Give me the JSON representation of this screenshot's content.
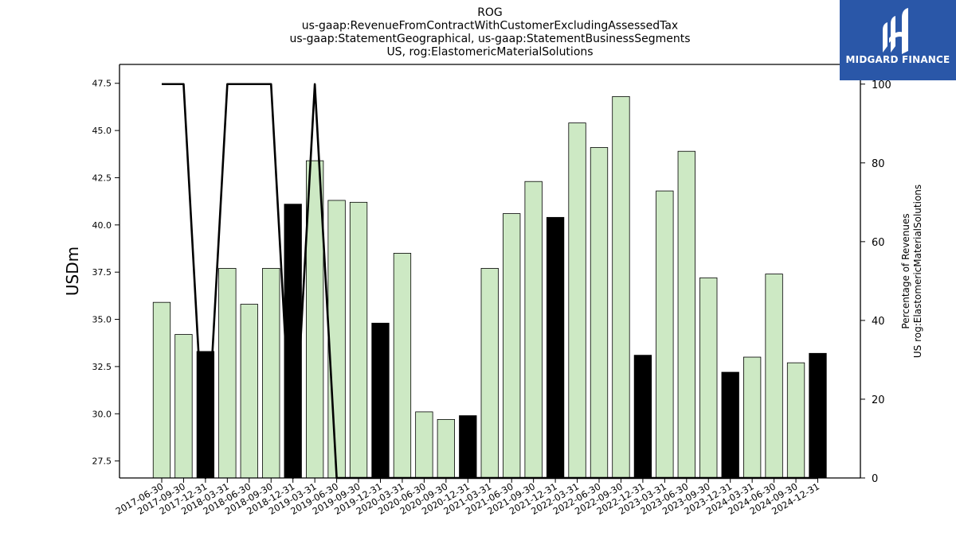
{
  "chart_data": {
    "type": "bar+line",
    "title_lines": [
      "ROG",
      "us-gaap:RevenueFromContractWithCustomerExcludingAssessedTax",
      "us-gaap:StatementGeographical, us-gaap:StatementBusinessSegments",
      "US, rog:ElastomericMaterialSolutions"
    ],
    "ylabel": "USDm",
    "ylabel_right_lines": [
      "Percentage of Revenues",
      "US rog:ElastomericMaterialSolutions"
    ],
    "ylim": [
      26.6,
      48.5
    ],
    "ylim_right": [
      0,
      105
    ],
    "yticks": [
      27.5,
      30.0,
      32.5,
      35.0,
      37.5,
      40.0,
      42.5,
      45.0,
      47.5
    ],
    "yticks_right": [
      0,
      20,
      40,
      60,
      80,
      100
    ],
    "categories": [
      "2017-06-30",
      "2017-09-30",
      "2017-12-31",
      "2018-03-31",
      "2018-06-30",
      "2018-09-30",
      "2018-12-31",
      "2019-03-31",
      "2019-06-30",
      "2019-09-30",
      "2019-12-31",
      "2020-03-31",
      "2020-06-30",
      "2020-09-30",
      "2020-12-31",
      "2021-03-31",
      "2021-06-30",
      "2021-09-30",
      "2021-12-31",
      "2022-03-31",
      "2022-06-30",
      "2022-09-30",
      "2022-12-31",
      "2023-03-31",
      "2023-06-30",
      "2023-09-30",
      "2023-12-31",
      "2024-03-31",
      "2024-06-30",
      "2024-09-30",
      "2024-12-31"
    ],
    "values": [
      35.9,
      34.2,
      33.3,
      37.7,
      35.8,
      37.7,
      41.1,
      43.4,
      41.3,
      41.2,
      34.8,
      38.5,
      30.1,
      29.7,
      29.9,
      37.7,
      40.6,
      42.3,
      40.4,
      45.4,
      44.1,
      46.8,
      33.1,
      41.8,
      43.9,
      37.2,
      32.2,
      33.0,
      37.4,
      32.7,
      33.2
    ],
    "bar_highlight": [
      false,
      false,
      true,
      false,
      false,
      false,
      true,
      false,
      false,
      false,
      true,
      false,
      false,
      false,
      true,
      false,
      false,
      false,
      true,
      false,
      false,
      false,
      true,
      false,
      false,
      false,
      true,
      false,
      false,
      false,
      true
    ],
    "percentage_line": [
      100,
      100,
      0,
      100,
      100,
      100,
      0,
      100,
      0,
      0,
      0,
      0,
      0,
      0,
      0,
      0,
      0,
      0,
      0,
      0,
      0,
      0,
      0,
      0,
      0,
      0,
      0,
      0,
      0,
      0,
      0
    ],
    "colors": {
      "bar": "#cde9c4",
      "bar_highlight": "#000000",
      "bar_edge": "#000000",
      "line": "#000000"
    },
    "grid": false,
    "legend": "none"
  },
  "logo": {
    "text": "MIDGARD FINANCE",
    "icon": "midgard-logo-icon",
    "color": "#2a57a8"
  }
}
